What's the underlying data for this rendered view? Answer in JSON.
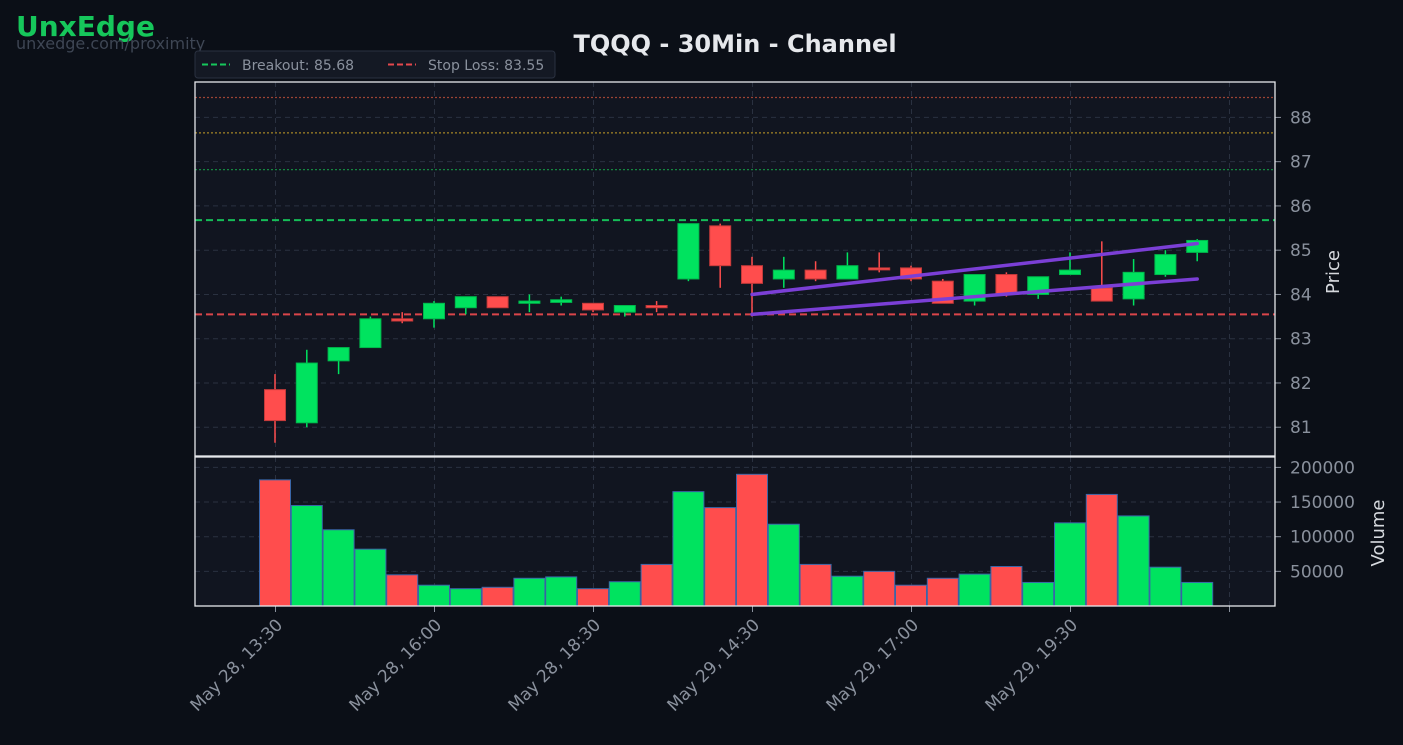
{
  "brand": {
    "name": "UnxEdge",
    "url": "unxedge.com/proximity"
  },
  "colors": {
    "background": "#0b0f17",
    "plot_bg": "#111520",
    "up": "#00e35f",
    "down": "#ff4d4d",
    "breakout": "#16c75b",
    "stop_loss": "#e5484d",
    "channel": "#7b3fd6",
    "grid": "#2a3140"
  },
  "chart_data": {
    "type": "candlestick",
    "title": "TQQQ - 30Min - Channel",
    "ylabel": "Price",
    "volume_label": "Volume",
    "ylim": [
      80.35,
      88.8
    ],
    "volume_ylim": [
      0,
      215000
    ],
    "x_ticks": [
      "May 28, 13:30",
      "May 28, 16:00",
      "May 28, 18:30",
      "May 29, 14:30",
      "May 29, 17:00",
      "May 29, 19:30"
    ],
    "x_tick_index": [
      0,
      5,
      10,
      15,
      20,
      25
    ],
    "y_ticks": [
      81,
      82,
      83,
      84,
      85,
      86,
      87,
      88
    ],
    "volume_ticks": [
      50000,
      100000,
      150000,
      200000
    ],
    "legend": [
      {
        "label": "Breakout: 85.68",
        "color": "#16c75b"
      },
      {
        "label": "Stop Loss: 83.55",
        "color": "#e5484d"
      }
    ],
    "levels": [
      {
        "name": "Breakout",
        "value": 85.68,
        "color": "#16c75b",
        "style": "dashed"
      },
      {
        "name": "Stop Loss",
        "value": 83.55,
        "color": "#e5484d",
        "style": "dashed"
      },
      {
        "value": 86.82,
        "color": "#16a34a",
        "style": "dotted"
      },
      {
        "value": 87.65,
        "color": "#c9a227",
        "style": "dotted"
      },
      {
        "value": 88.45,
        "color": "#c0503a",
        "style": "dotted"
      }
    ],
    "candles": [
      {
        "o": 81.85,
        "h": 82.2,
        "l": 80.65,
        "c": 81.15,
        "v": 182000
      },
      {
        "o": 81.1,
        "h": 82.75,
        "l": 81.0,
        "c": 82.45,
        "v": 145000
      },
      {
        "o": 82.5,
        "h": 82.8,
        "l": 82.2,
        "c": 82.8,
        "v": 110000
      },
      {
        "o": 82.8,
        "h": 83.5,
        "l": 82.8,
        "c": 83.45,
        "v": 82000
      },
      {
        "o": 83.45,
        "h": 83.6,
        "l": 83.35,
        "c": 83.4,
        "v": 45000
      },
      {
        "o": 83.45,
        "h": 83.85,
        "l": 83.25,
        "c": 83.8,
        "v": 30000
      },
      {
        "o": 83.7,
        "h": 83.95,
        "l": 83.55,
        "c": 83.95,
        "v": 25000
      },
      {
        "o": 83.95,
        "h": 83.95,
        "l": 83.7,
        "c": 83.7,
        "v": 27000
      },
      {
        "o": 83.8,
        "h": 84.0,
        "l": 83.6,
        "c": 83.85,
        "v": 40000
      },
      {
        "o": 83.82,
        "h": 83.95,
        "l": 83.75,
        "c": 83.88,
        "v": 42000
      },
      {
        "o": 83.8,
        "h": 83.8,
        "l": 83.6,
        "c": 83.65,
        "v": 25000
      },
      {
        "o": 83.6,
        "h": 83.75,
        "l": 83.5,
        "c": 83.75,
        "v": 35000
      },
      {
        "o": 83.75,
        "h": 83.85,
        "l": 83.6,
        "c": 83.7,
        "v": 60000
      },
      {
        "o": 84.35,
        "h": 85.6,
        "l": 84.3,
        "c": 85.6,
        "v": 165000
      },
      {
        "o": 85.55,
        "h": 85.6,
        "l": 84.15,
        "c": 84.65,
        "v": 142000
      },
      {
        "o": 84.65,
        "h": 84.85,
        "l": 83.5,
        "c": 84.25,
        "v": 190000
      },
      {
        "o": 84.35,
        "h": 84.85,
        "l": 84.15,
        "c": 84.55,
        "v": 118000
      },
      {
        "o": 84.55,
        "h": 84.75,
        "l": 84.3,
        "c": 84.35,
        "v": 60000
      },
      {
        "o": 84.35,
        "h": 84.95,
        "l": 84.35,
        "c": 84.65,
        "v": 43000
      },
      {
        "o": 84.6,
        "h": 84.95,
        "l": 84.5,
        "c": 84.58,
        "v": 50000
      },
      {
        "o": 84.6,
        "h": 84.65,
        "l": 84.3,
        "c": 84.35,
        "v": 30000
      },
      {
        "o": 84.3,
        "h": 84.35,
        "l": 83.8,
        "c": 83.8,
        "v": 40000
      },
      {
        "o": 83.85,
        "h": 84.45,
        "l": 83.75,
        "c": 84.45,
        "v": 46000
      },
      {
        "o": 84.45,
        "h": 84.5,
        "l": 83.95,
        "c": 84.0,
        "v": 57000
      },
      {
        "o": 84.0,
        "h": 84.4,
        "l": 83.9,
        "c": 84.4,
        "v": 34000
      },
      {
        "o": 84.45,
        "h": 84.95,
        "l": 84.45,
        "c": 84.55,
        "v": 120000
      },
      {
        "o": 84.15,
        "h": 85.2,
        "l": 83.85,
        "c": 83.85,
        "v": 161000
      },
      {
        "o": 83.9,
        "h": 84.8,
        "l": 83.75,
        "c": 84.5,
        "v": 130000
      },
      {
        "o": 84.45,
        "h": 85.0,
        "l": 84.4,
        "c": 84.9,
        "v": 56000
      },
      {
        "o": 84.95,
        "h": 85.25,
        "l": 84.75,
        "c": 85.22,
        "v": 34000
      }
    ],
    "channel": {
      "upper": [
        {
          "i": 15,
          "p": 84.0
        },
        {
          "i": 29,
          "p": 85.15
        }
      ],
      "lower": [
        {
          "i": 15,
          "p": 83.55
        },
        {
          "i": 29,
          "p": 84.35
        }
      ]
    }
  }
}
